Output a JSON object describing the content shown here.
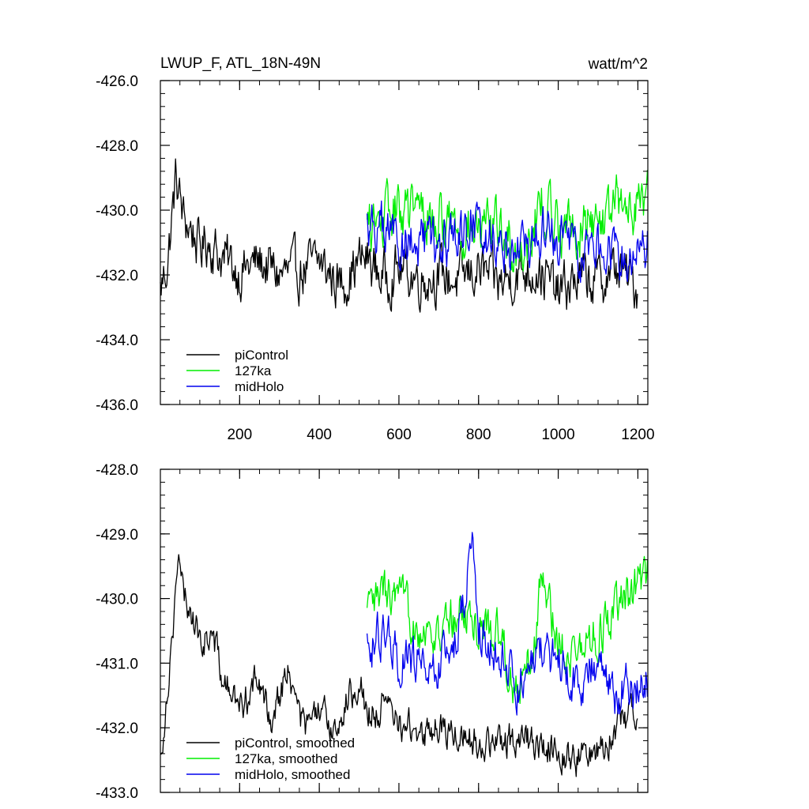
{
  "figure": {
    "title": "LWUP_F, ATL_18N-49N",
    "units": "watt/m^2"
  },
  "colors": {
    "piControl": "#000000",
    "127ka": "#00ee00",
    "midHolo": "#0000ee"
  },
  "chart_data": [
    {
      "type": "line",
      "panel": "top",
      "xlim": [
        1,
        1225
      ],
      "ylim": [
        -436,
        -426
      ],
      "xticks": [
        200,
        400,
        600,
        800,
        1000,
        1200
      ],
      "xtick_labels": [
        "200",
        "400",
        "600",
        "800",
        "1000",
        "1200"
      ],
      "yticks": [
        -436,
        -434,
        -432,
        -430,
        -428,
        -426
      ],
      "ytick_labels": [
        "-436.0",
        "-434.0",
        "-432.0",
        "-430.0",
        "-428.0",
        "-426.0"
      ],
      "legend_position": "bottom-left",
      "series": [
        {
          "name": "piControl",
          "legend": "piControl",
          "x_start": 1,
          "x_end": 1200,
          "anchors": [
            [
              1,
              -432.5
            ],
            [
              20,
              -431.5
            ],
            [
              40,
              -429.0
            ],
            [
              60,
              -430.3
            ],
            [
              80,
              -430.6
            ],
            [
              100,
              -431.2
            ],
            [
              120,
              -430.9
            ],
            [
              150,
              -431.4
            ],
            [
              200,
              -431.9
            ],
            [
              250,
              -431.6
            ],
            [
              300,
              -432.0
            ],
            [
              350,
              -431.9
            ],
            [
              400,
              -431.6
            ],
            [
              450,
              -432.3
            ],
            [
              500,
              -431.6
            ],
            [
              520,
              -431.5
            ],
            [
              560,
              -432.1
            ],
            [
              600,
              -431.8
            ],
            [
              650,
              -432.1
            ],
            [
              700,
              -432.0
            ],
            [
              750,
              -432.2
            ],
            [
              800,
              -431.8
            ],
            [
              850,
              -432.3
            ],
            [
              900,
              -431.9
            ],
            [
              950,
              -431.8
            ],
            [
              1000,
              -432.6
            ],
            [
              1050,
              -432.1
            ],
            [
              1100,
              -432.2
            ],
            [
              1150,
              -431.8
            ],
            [
              1200,
              -432.4
            ]
          ],
          "noise": 0.65
        },
        {
          "name": "127ka",
          "legend": "127ka",
          "x_start": 520,
          "x_end": 1225,
          "anchors": [
            [
              520,
              -430.6
            ],
            [
              560,
              -430.3
            ],
            [
              600,
              -430.0
            ],
            [
              650,
              -430.1
            ],
            [
              700,
              -430.3
            ],
            [
              750,
              -430.4
            ],
            [
              800,
              -430.7
            ],
            [
              850,
              -430.5
            ],
            [
              900,
              -431.3
            ],
            [
              930,
              -430.6
            ],
            [
              960,
              -429.8
            ],
            [
              1000,
              -430.4
            ],
            [
              1050,
              -430.6
            ],
            [
              1100,
              -430.3
            ],
            [
              1150,
              -429.9
            ],
            [
              1200,
              -429.7
            ],
            [
              1225,
              -429.6
            ]
          ],
          "noise": 0.7
        },
        {
          "name": "midHolo",
          "legend": "midHolo",
          "x_start": 520,
          "x_end": 1225,
          "anchors": [
            [
              520,
              -430.4
            ],
            [
              560,
              -430.6
            ],
            [
              600,
              -430.9
            ],
            [
              650,
              -431.1
            ],
            [
              700,
              -431.2
            ],
            [
              750,
              -430.8
            ],
            [
              780,
              -430.2
            ],
            [
              800,
              -430.7
            ],
            [
              850,
              -430.9
            ],
            [
              900,
              -431.2
            ],
            [
              950,
              -430.9
            ],
            [
              1000,
              -430.8
            ],
            [
              1050,
              -431.3
            ],
            [
              1100,
              -431.1
            ],
            [
              1150,
              -431.4
            ],
            [
              1200,
              -431.2
            ],
            [
              1225,
              -431.1
            ]
          ],
          "noise": 0.65
        }
      ]
    },
    {
      "type": "line",
      "panel": "bottom",
      "xlim": [
        1,
        1225
      ],
      "ylim": [
        -433,
        -428
      ],
      "xticks": [
        200,
        400,
        600,
        800,
        1000,
        1200
      ],
      "xtick_labels": [],
      "yticks": [
        -433,
        -432,
        -431,
        -430,
        -429,
        -428
      ],
      "ytick_labels": [
        "-433.0",
        "-432.0",
        "-431.0",
        "-430.0",
        "-429.0",
        "-428.0"
      ],
      "legend_position": "bottom-left",
      "series": [
        {
          "name": "piControl, smoothed",
          "legend": "piControl, smoothed",
          "x_start": 1,
          "x_end": 1200,
          "anchors": [
            [
              1,
              -432.5
            ],
            [
              15,
              -431.6
            ],
            [
              30,
              -430.6
            ],
            [
              45,
              -429.4
            ],
            [
              60,
              -430.0
            ],
            [
              80,
              -430.2
            ],
            [
              100,
              -430.7
            ],
            [
              130,
              -430.5
            ],
            [
              160,
              -431.3
            ],
            [
              200,
              -431.7
            ],
            [
              240,
              -431.3
            ],
            [
              280,
              -431.8
            ],
            [
              320,
              -431.1
            ],
            [
              360,
              -432.0
            ],
            [
              400,
              -431.8
            ],
            [
              440,
              -432.0
            ],
            [
              470,
              -431.6
            ],
            [
              500,
              -431.2
            ],
            [
              520,
              -431.8
            ],
            [
              560,
              -431.7
            ],
            [
              600,
              -431.9
            ],
            [
              650,
              -432.1
            ],
            [
              700,
              -432.0
            ],
            [
              750,
              -432.1
            ],
            [
              800,
              -432.2
            ],
            [
              850,
              -432.3
            ],
            [
              900,
              -432.1
            ],
            [
              950,
              -432.3
            ],
            [
              1000,
              -432.3
            ],
            [
              1050,
              -432.5
            ],
            [
              1100,
              -432.3
            ],
            [
              1150,
              -432.0
            ],
            [
              1200,
              -431.6
            ]
          ],
          "noise": 0.22
        },
        {
          "name": "127ka, smoothed",
          "legend": "127ka, smoothed",
          "x_start": 520,
          "x_end": 1225,
          "anchors": [
            [
              520,
              -430.3
            ],
            [
              560,
              -429.9
            ],
            [
              600,
              -430.1
            ],
            [
              650,
              -430.4
            ],
            [
              700,
              -430.6
            ],
            [
              750,
              -430.2
            ],
            [
              800,
              -430.4
            ],
            [
              850,
              -430.5
            ],
            [
              900,
              -431.5
            ],
            [
              930,
              -431.0
            ],
            [
              960,
              -429.7
            ],
            [
              1000,
              -430.6
            ],
            [
              1050,
              -430.9
            ],
            [
              1100,
              -430.5
            ],
            [
              1150,
              -430.2
            ],
            [
              1200,
              -429.8
            ],
            [
              1225,
              -429.7
            ]
          ],
          "noise": 0.3
        },
        {
          "name": "midHolo, smoothed",
          "legend": "midHolo, smoothed",
          "x_start": 520,
          "x_end": 1225,
          "anchors": [
            [
              520,
              -430.7
            ],
            [
              560,
              -430.6
            ],
            [
              600,
              -430.9
            ],
            [
              650,
              -431.0
            ],
            [
              700,
              -431.1
            ],
            [
              750,
              -430.5
            ],
            [
              785,
              -429.2
            ],
            [
              800,
              -430.5
            ],
            [
              850,
              -430.9
            ],
            [
              900,
              -431.4
            ],
            [
              950,
              -430.8
            ],
            [
              1000,
              -430.9
            ],
            [
              1050,
              -431.3
            ],
            [
              1100,
              -431.0
            ],
            [
              1150,
              -431.5
            ],
            [
              1200,
              -431.3
            ],
            [
              1225,
              -431.2
            ]
          ],
          "noise": 0.3
        }
      ]
    }
  ]
}
